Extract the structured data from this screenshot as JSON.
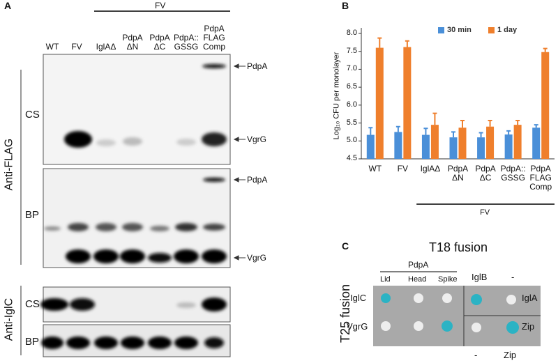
{
  "panels": {
    "a": "A",
    "b": "B",
    "c": "C"
  },
  "blot": {
    "group_label": "FV",
    "lanes": [
      "WT",
      "FV",
      "IglAΔ",
      "PdpA ΔN",
      "PdpA ΔC",
      "PdpA:: GSSG",
      "PdpA FLAG Comp"
    ],
    "antibodies": [
      "Anti-FLAG",
      "Anti-IglC"
    ],
    "flag_rows": [
      {
        "fraction": "CS",
        "markers": [
          "PdpA",
          "VgrG"
        ]
      },
      {
        "fraction": "BP",
        "markers": [
          "PdpA",
          "VgrG"
        ]
      }
    ],
    "iglc_rows": [
      "CS",
      "BP"
    ]
  },
  "chart_data": {
    "type": "bar",
    "ylabel": "Log₁₀ CFU per monolayer",
    "categories": [
      "WT",
      "FV",
      "IglAΔ",
      "PdpA ΔN",
      "PdpA ΔC",
      "PdpA:: GSSG",
      "PdpA FLAG Comp"
    ],
    "group_label": "FV",
    "series": [
      {
        "name": "30 min",
        "color": "#4a8fd8",
        "values": [
          5.17,
          5.25,
          5.17,
          5.1,
          5.1,
          5.18,
          5.37
        ],
        "errors": [
          0.2,
          0.15,
          0.18,
          0.15,
          0.13,
          0.1,
          0.08
        ]
      },
      {
        "name": "1 day",
        "color": "#ef7f2c",
        "values": [
          7.6,
          7.62,
          5.45,
          5.37,
          5.4,
          5.45,
          7.48
        ],
        "errors": [
          0.27,
          0.17,
          0.32,
          0.2,
          0.17,
          0.12,
          0.1
        ]
      }
    ],
    "ylim": [
      4.5,
      8.0
    ],
    "yticks": [
      4.5,
      {
        "value": 5,
        "label": "5.0"
      },
      5.5,
      {
        "value": 6,
        "label": "6.0"
      },
      6.5,
      {
        "value": 7,
        "label": "7.0"
      },
      7.5,
      {
        "value": 8,
        "label": "8.0"
      }
    ],
    "legend": "top-right"
  },
  "plate": {
    "title": "T18 fusion",
    "side_label": "T25 fusion",
    "group_label": "PdpA",
    "columns": [
      "Lid",
      "Head",
      "Spike",
      "IglB",
      "-"
    ],
    "rows": [
      "IglC",
      "VgrG"
    ],
    "right_rows": [
      "IglA",
      "Zip"
    ],
    "bottom": [
      "-",
      "Zip"
    ]
  }
}
